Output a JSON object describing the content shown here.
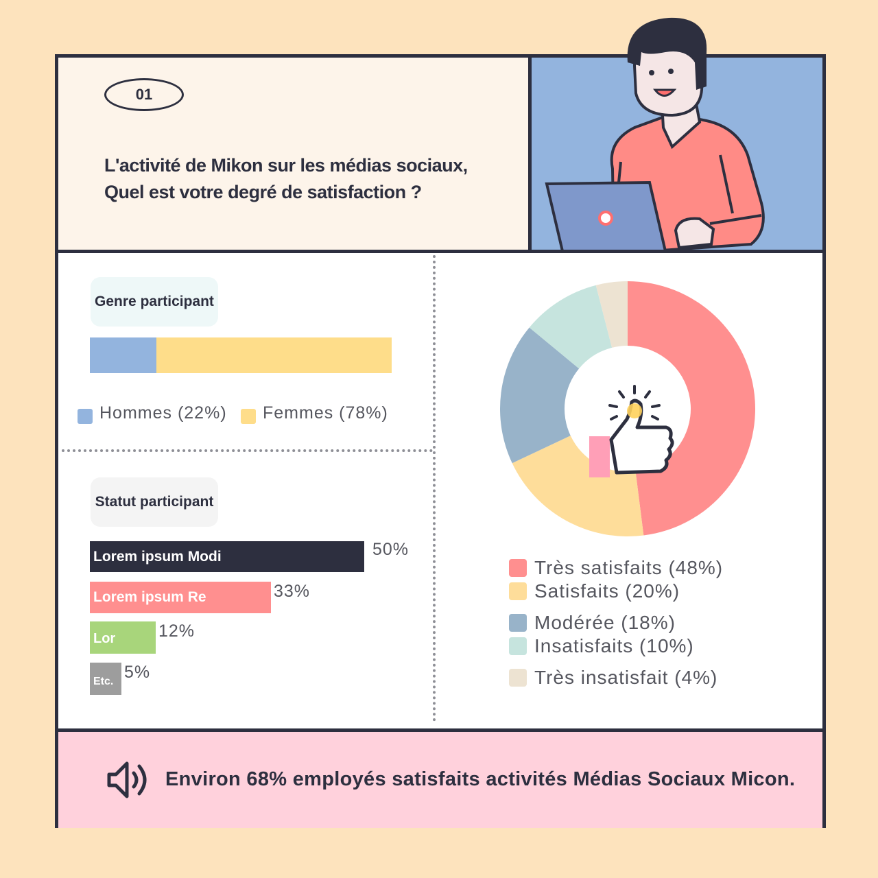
{
  "header": {
    "badge": "01",
    "title_line1": "L'activité de Mikon sur les médias sociaux,",
    "title_line2": "Quel est votre degré de satisfaction ?"
  },
  "gender": {
    "label": "Genre participant",
    "legend": [
      {
        "text": "Hommes (22%)",
        "color": "#93B4DE"
      },
      {
        "text": "Femmes (78%)",
        "color": "#FEDD8A"
      }
    ]
  },
  "status": {
    "label": "Statut participant"
  },
  "chart_data": [
    {
      "type": "bar",
      "orientation": "horizontal",
      "stacked": true,
      "categories": [
        "Hommes",
        "Femmes"
      ],
      "values": [
        22,
        78
      ],
      "colors": [
        "#93B4DE",
        "#FEDD8A"
      ]
    },
    {
      "type": "bar",
      "orientation": "horizontal",
      "categories": [
        "Lorem ipsum Modi",
        "Lorem ipsum Re",
        "Lor",
        "Etc."
      ],
      "values": [
        50,
        33,
        12,
        5
      ],
      "value_labels": [
        "50%",
        "33%",
        "12%",
        "5%"
      ],
      "colors": [
        "#2D2F3F",
        "#FF8F8F",
        "#A8D57B",
        "#9D9D9D"
      ]
    },
    {
      "type": "pie",
      "donut": true,
      "categories": [
        "Très satisfaits",
        "Satisfaits",
        "Modérée",
        "Insatisfaits",
        "Très insatisfait"
      ],
      "values": [
        48,
        20,
        18,
        10,
        4
      ],
      "legend_labels": [
        "Très satisfaits (48%)",
        "Satisfaits (20%)",
        "Modérée (18%)",
        "Insatisfaits (10%)",
        "Très insatisfait (4%)"
      ],
      "colors": [
        "#FF8F8F",
        "#FEDD9A",
        "#98B3C9",
        "#C6E4DE",
        "#EDE3D2"
      ],
      "legend_placement": "bottom"
    }
  ],
  "footer": {
    "text": "Environ 68% employés satisfaits activités Médias Sociaux Micon."
  }
}
